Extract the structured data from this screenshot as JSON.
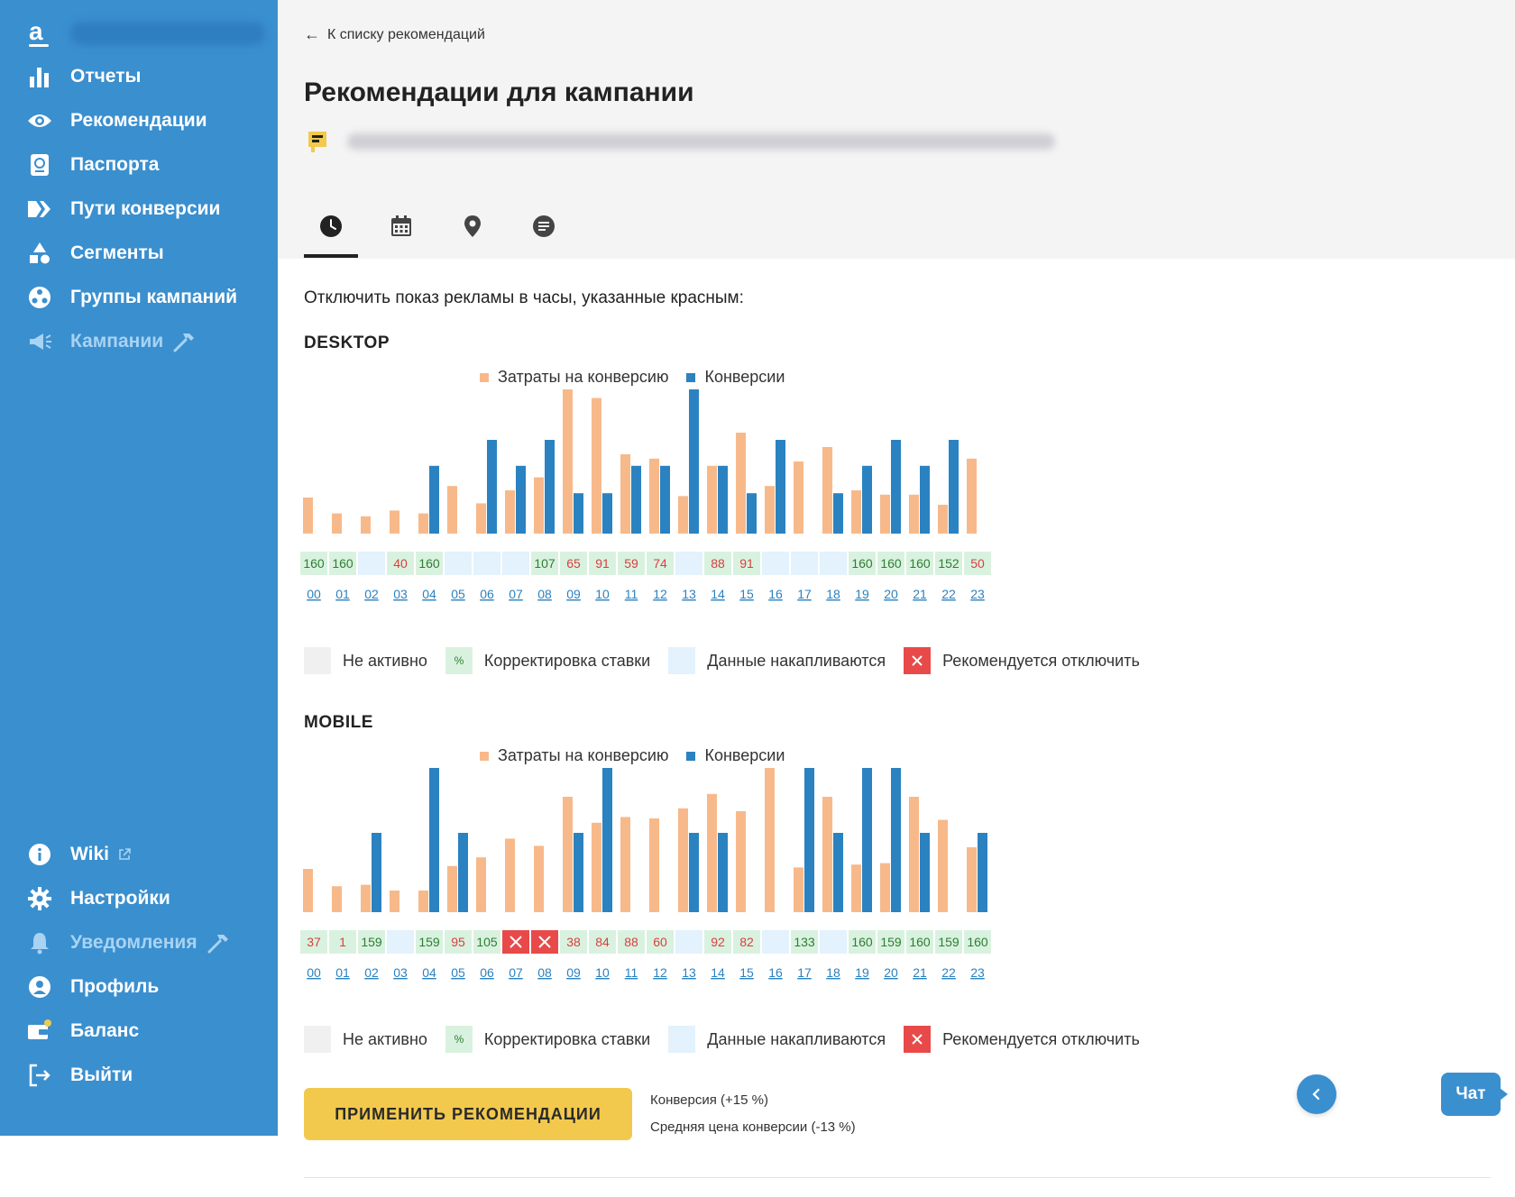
{
  "brand": {
    "accent": "#3a8fcf",
    "cost_color": "#f7b98a",
    "conv_color": "#2b82c0",
    "recommend_color": "#e84a4a",
    "adjust_bg": "#d9f2df",
    "accum_bg": "#e3f2fc",
    "inactive_bg": "#f0f0f0",
    "button_color": "#f2c94c"
  },
  "sidebar": {
    "site": "",
    "items": [
      {
        "label": "Отчеты",
        "icon": "bar-chart-icon"
      },
      {
        "label": "Рекомендации",
        "icon": "eye-icon"
      },
      {
        "label": "Паспорта",
        "icon": "passport-icon"
      },
      {
        "label": "Пути конверсии",
        "icon": "conversion-path-icon"
      },
      {
        "label": "Сегменты",
        "icon": "shapes-icon"
      },
      {
        "label": "Группы кампаний",
        "icon": "campaign-groups-icon"
      },
      {
        "label": "Кампании",
        "icon": "megaphone-icon"
      }
    ],
    "bottom_items": [
      {
        "label": "Wiki",
        "icon": "info-icon"
      },
      {
        "label": "Настройки",
        "icon": "gear-icon"
      },
      {
        "label": "Уведомления",
        "icon": "bell-icon"
      },
      {
        "label": "Профиль",
        "icon": "user-icon"
      },
      {
        "label": "Баланс",
        "icon": "wallet-icon"
      },
      {
        "label": "Выйти",
        "icon": "logout-icon"
      }
    ]
  },
  "header": {
    "back_label": "К списку рекомендаций",
    "title": "Рекомендации для кампании",
    "campaign_name": "",
    "tabs": [
      {
        "name": "clock-icon",
        "active": true
      },
      {
        "name": "calendar-icon",
        "active": false
      },
      {
        "name": "location-pin-icon",
        "active": false
      },
      {
        "name": "list-icon",
        "active": false
      }
    ]
  },
  "content": {
    "instruction": "Отключить показ рекламы в часы, указанные красным:",
    "legend": {
      "cost": "Затраты на конверсию",
      "conv": "Конверсии"
    },
    "status_legend": {
      "inactive": "Не активно",
      "adjust_symbol": "%",
      "adjust": "Корректировка ставки",
      "accum": "Данные накапливаются",
      "recommend": "Рекомендуется отключить"
    }
  },
  "chart_data": [
    {
      "type": "bar",
      "title": "DESKTOP",
      "categories": [
        "00",
        "01",
        "02",
        "03",
        "04",
        "05",
        "06",
        "07",
        "08",
        "09",
        "10",
        "11",
        "12",
        "13",
        "14",
        "15",
        "16",
        "17",
        "18",
        "19",
        "20",
        "21",
        "22",
        "23"
      ],
      "series": [
        {
          "name": "Затраты на конверсию",
          "values": [
            25,
            14,
            12,
            16,
            14,
            33,
            21,
            30,
            39,
            100,
            94,
            55,
            52,
            26,
            47,
            70,
            33,
            50,
            60,
            30,
            27,
            27,
            20,
            52
          ]
        },
        {
          "name": "Конверсии",
          "values": [
            0,
            0,
            0,
            0,
            47,
            0,
            65,
            47,
            65,
            28,
            28,
            47,
            47,
            100,
            47,
            28,
            65,
            0,
            28,
            47,
            65,
            47,
            65,
            0
          ]
        }
      ],
      "cells": [
        {
          "t": "160",
          "s": "adjust-up"
        },
        {
          "t": "160",
          "s": "adjust-up"
        },
        {
          "t": "",
          "s": "accum"
        },
        {
          "t": "40",
          "s": "adjust-down"
        },
        {
          "t": "160",
          "s": "adjust-up"
        },
        {
          "t": "",
          "s": "accum"
        },
        {
          "t": "",
          "s": "accum"
        },
        {
          "t": "",
          "s": "accum"
        },
        {
          "t": "107",
          "s": "adjust-up"
        },
        {
          "t": "65",
          "s": "adjust-down"
        },
        {
          "t": "91",
          "s": "adjust-down"
        },
        {
          "t": "59",
          "s": "adjust-down"
        },
        {
          "t": "74",
          "s": "adjust-down"
        },
        {
          "t": "",
          "s": "accum"
        },
        {
          "t": "88",
          "s": "adjust-down"
        },
        {
          "t": "91",
          "s": "adjust-down"
        },
        {
          "t": "",
          "s": "accum"
        },
        {
          "t": "",
          "s": "accum"
        },
        {
          "t": "",
          "s": "accum"
        },
        {
          "t": "160",
          "s": "adjust-up"
        },
        {
          "t": "160",
          "s": "adjust-up"
        },
        {
          "t": "160",
          "s": "adjust-up"
        },
        {
          "t": "152",
          "s": "adjust-up"
        },
        {
          "t": "50",
          "s": "adjust-down"
        }
      ]
    },
    {
      "type": "bar",
      "title": "MOBILE",
      "categories": [
        "00",
        "01",
        "02",
        "03",
        "04",
        "05",
        "06",
        "07",
        "08",
        "09",
        "10",
        "11",
        "12",
        "13",
        "14",
        "15",
        "16",
        "17",
        "18",
        "19",
        "20",
        "21",
        "22",
        "23"
      ],
      "series": [
        {
          "name": "Затраты на конверсию",
          "values": [
            30,
            18,
            19,
            15,
            15,
            32,
            38,
            51,
            46,
            80,
            62,
            66,
            65,
            72,
            82,
            70,
            100,
            31,
            80,
            33,
            34,
            80,
            64,
            45
          ]
        },
        {
          "name": "Конверсии",
          "values": [
            0,
            0,
            55,
            0,
            100,
            55,
            0,
            0,
            0,
            55,
            100,
            0,
            0,
            55,
            55,
            0,
            0,
            100,
            55,
            100,
            100,
            55,
            0,
            55
          ]
        }
      ],
      "cells": [
        {
          "t": "37",
          "s": "adjust-down"
        },
        {
          "t": "1",
          "s": "adjust-down"
        },
        {
          "t": "159",
          "s": "adjust-up"
        },
        {
          "t": "",
          "s": "accum"
        },
        {
          "t": "159",
          "s": "adjust-up"
        },
        {
          "t": "95",
          "s": "adjust-down"
        },
        {
          "t": "105",
          "s": "adjust-up"
        },
        {
          "t": "",
          "s": "recommend"
        },
        {
          "t": "",
          "s": "recommend"
        },
        {
          "t": "38",
          "s": "adjust-down"
        },
        {
          "t": "84",
          "s": "adjust-down"
        },
        {
          "t": "88",
          "s": "adjust-down"
        },
        {
          "t": "60",
          "s": "adjust-down"
        },
        {
          "t": "",
          "s": "accum"
        },
        {
          "t": "92",
          "s": "adjust-down"
        },
        {
          "t": "82",
          "s": "adjust-down"
        },
        {
          "t": "",
          "s": "accum"
        },
        {
          "t": "133",
          "s": "adjust-up"
        },
        {
          "t": "",
          "s": "accum"
        },
        {
          "t": "160",
          "s": "adjust-up"
        },
        {
          "t": "159",
          "s": "adjust-up"
        },
        {
          "t": "160",
          "s": "adjust-up"
        },
        {
          "t": "159",
          "s": "adjust-up"
        },
        {
          "t": "160",
          "s": "adjust-up"
        }
      ]
    }
  ],
  "footer": {
    "apply_label": "ПРИМЕНИТЬ РЕКОМЕНДАЦИИ",
    "prediction_conv": "Конверсия (+15 %)",
    "prediction_cost": "Средняя цена конверсии (-13 %)",
    "chat_label": "Чат"
  }
}
